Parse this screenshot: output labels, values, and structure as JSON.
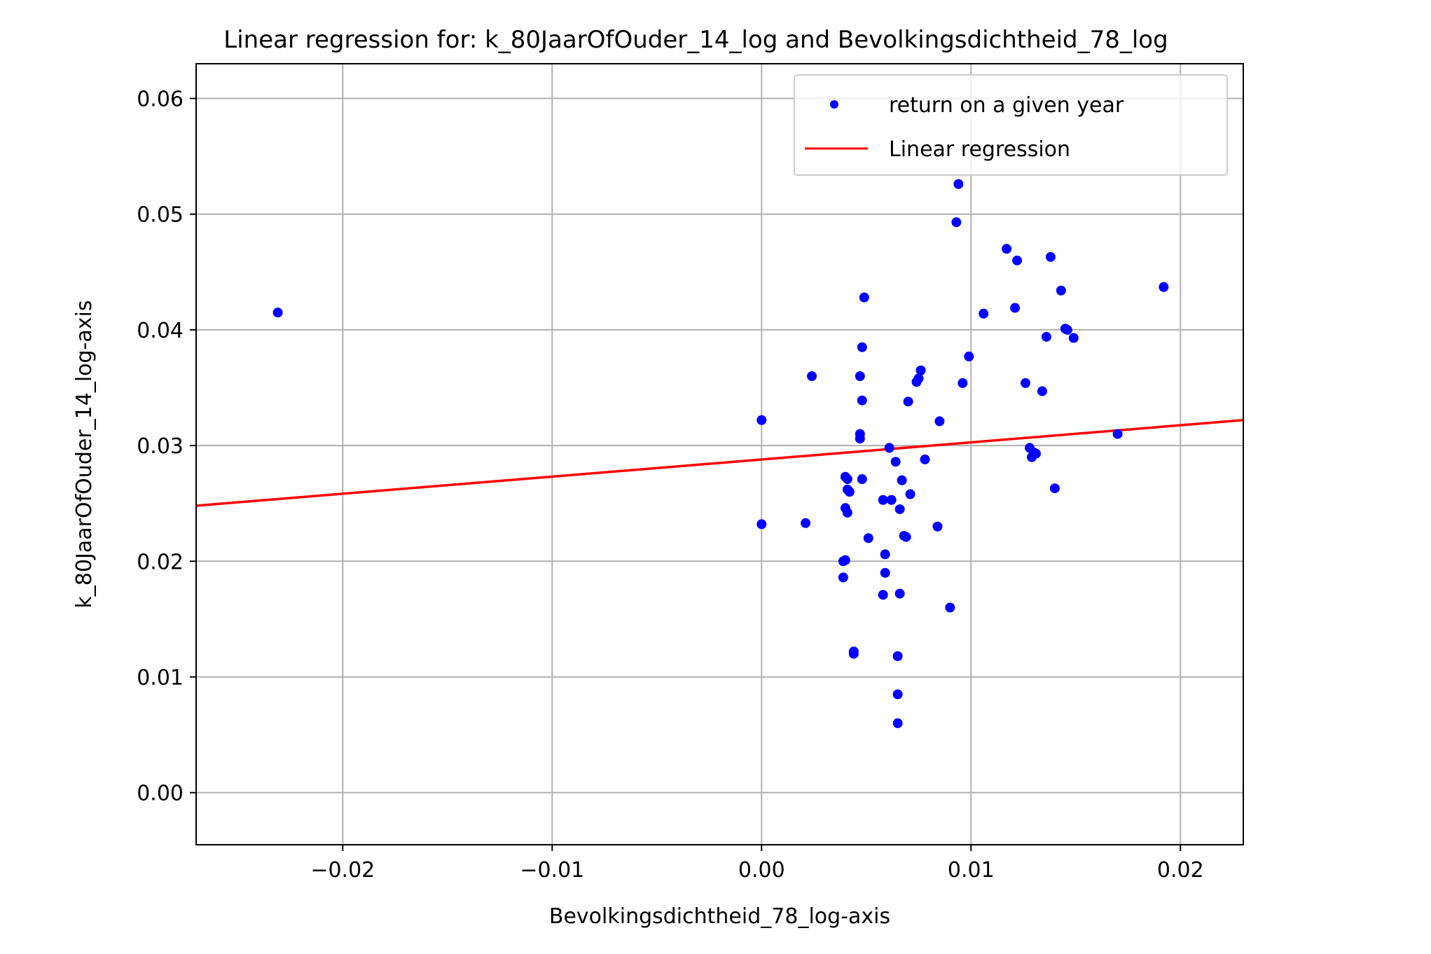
{
  "chart_data": {
    "type": "scatter",
    "title": "Linear regression for: k_80JaarOfOuder_14_log and Bevolkingsdichtheid_78_log",
    "xlabel": "Bevolkingsdichtheid_78_log-axis",
    "ylabel": "k_80JaarOfOuder_14_log-axis",
    "xlim": [
      -0.027,
      0.023
    ],
    "ylim": [
      -0.0045,
      0.063
    ],
    "x_ticks": [
      -0.02,
      -0.01,
      0.0,
      0.01,
      0.02
    ],
    "x_tick_labels": [
      "−0.02",
      "−0.01",
      "0.00",
      "0.01",
      "0.02"
    ],
    "y_ticks": [
      0.0,
      0.01,
      0.02,
      0.03,
      0.04,
      0.05,
      0.06
    ],
    "y_tick_labels": [
      "0.00",
      "0.01",
      "0.02",
      "0.03",
      "0.04",
      "0.05",
      "0.06"
    ],
    "grid": true,
    "legend_position": "top-right",
    "series": [
      {
        "name": "return on a given year",
        "kind": "scatter",
        "color": "#0000ff",
        "points": [
          [
            -0.0231,
            0.0415
          ],
          [
            0.0,
            0.0322
          ],
          [
            0.0,
            0.0232
          ],
          [
            0.0021,
            0.0233
          ],
          [
            0.0024,
            0.036
          ],
          [
            0.0039,
            0.02
          ],
          [
            0.004,
            0.0201
          ],
          [
            0.0039,
            0.0186
          ],
          [
            0.004,
            0.0246
          ],
          [
            0.0041,
            0.0242
          ],
          [
            0.004,
            0.0273
          ],
          [
            0.0041,
            0.0262
          ],
          [
            0.0042,
            0.026
          ],
          [
            0.0041,
            0.0271
          ],
          [
            0.0044,
            0.0122
          ],
          [
            0.0044,
            0.012
          ],
          [
            0.0047,
            0.0306
          ],
          [
            0.0047,
            0.031
          ],
          [
            0.0047,
            0.036
          ],
          [
            0.0048,
            0.0385
          ],
          [
            0.0048,
            0.0339
          ],
          [
            0.0048,
            0.0271
          ],
          [
            0.0049,
            0.0428
          ],
          [
            0.0051,
            0.022
          ],
          [
            0.0058,
            0.0253
          ],
          [
            0.0058,
            0.0171
          ],
          [
            0.0059,
            0.019
          ],
          [
            0.0059,
            0.0206
          ],
          [
            0.0061,
            0.0298
          ],
          [
            0.0062,
            0.0253
          ],
          [
            0.0064,
            0.0286
          ],
          [
            0.0065,
            0.0085
          ],
          [
            0.0065,
            0.006
          ],
          [
            0.0065,
            0.0118
          ],
          [
            0.0066,
            0.0245
          ],
          [
            0.0066,
            0.0172
          ],
          [
            0.0067,
            0.027
          ],
          [
            0.0068,
            0.0222
          ],
          [
            0.0069,
            0.0221
          ],
          [
            0.007,
            0.0338
          ],
          [
            0.0071,
            0.0258
          ],
          [
            0.0074,
            0.0355
          ],
          [
            0.0075,
            0.0358
          ],
          [
            0.0076,
            0.0365
          ],
          [
            0.0078,
            0.0288
          ],
          [
            0.0084,
            0.023
          ],
          [
            0.0085,
            0.0321
          ],
          [
            0.009,
            0.016
          ],
          [
            0.0093,
            0.0493
          ],
          [
            0.0094,
            0.0526
          ],
          [
            0.0096,
            0.0354
          ],
          [
            0.0099,
            0.0377
          ],
          [
            0.0106,
            0.0414
          ],
          [
            0.0117,
            0.047
          ],
          [
            0.0121,
            0.0419
          ],
          [
            0.0122,
            0.046
          ],
          [
            0.0126,
            0.0354
          ],
          [
            0.0128,
            0.0298
          ],
          [
            0.0129,
            0.029
          ],
          [
            0.013,
            0.0294
          ],
          [
            0.0131,
            0.0293
          ],
          [
            0.0134,
            0.0347
          ],
          [
            0.0136,
            0.0394
          ],
          [
            0.0138,
            0.0463
          ],
          [
            0.014,
            0.0263
          ],
          [
            0.0143,
            0.0434
          ],
          [
            0.0145,
            0.0401
          ],
          [
            0.0146,
            0.04
          ],
          [
            0.0149,
            0.0393
          ],
          [
            0.017,
            0.031
          ],
          [
            0.0192,
            0.0437
          ]
        ]
      },
      {
        "name": "Linear regression",
        "kind": "line",
        "color": "#ff0000",
        "points": [
          [
            -0.027,
            0.0248
          ],
          [
            0.023,
            0.0322
          ]
        ]
      }
    ]
  }
}
